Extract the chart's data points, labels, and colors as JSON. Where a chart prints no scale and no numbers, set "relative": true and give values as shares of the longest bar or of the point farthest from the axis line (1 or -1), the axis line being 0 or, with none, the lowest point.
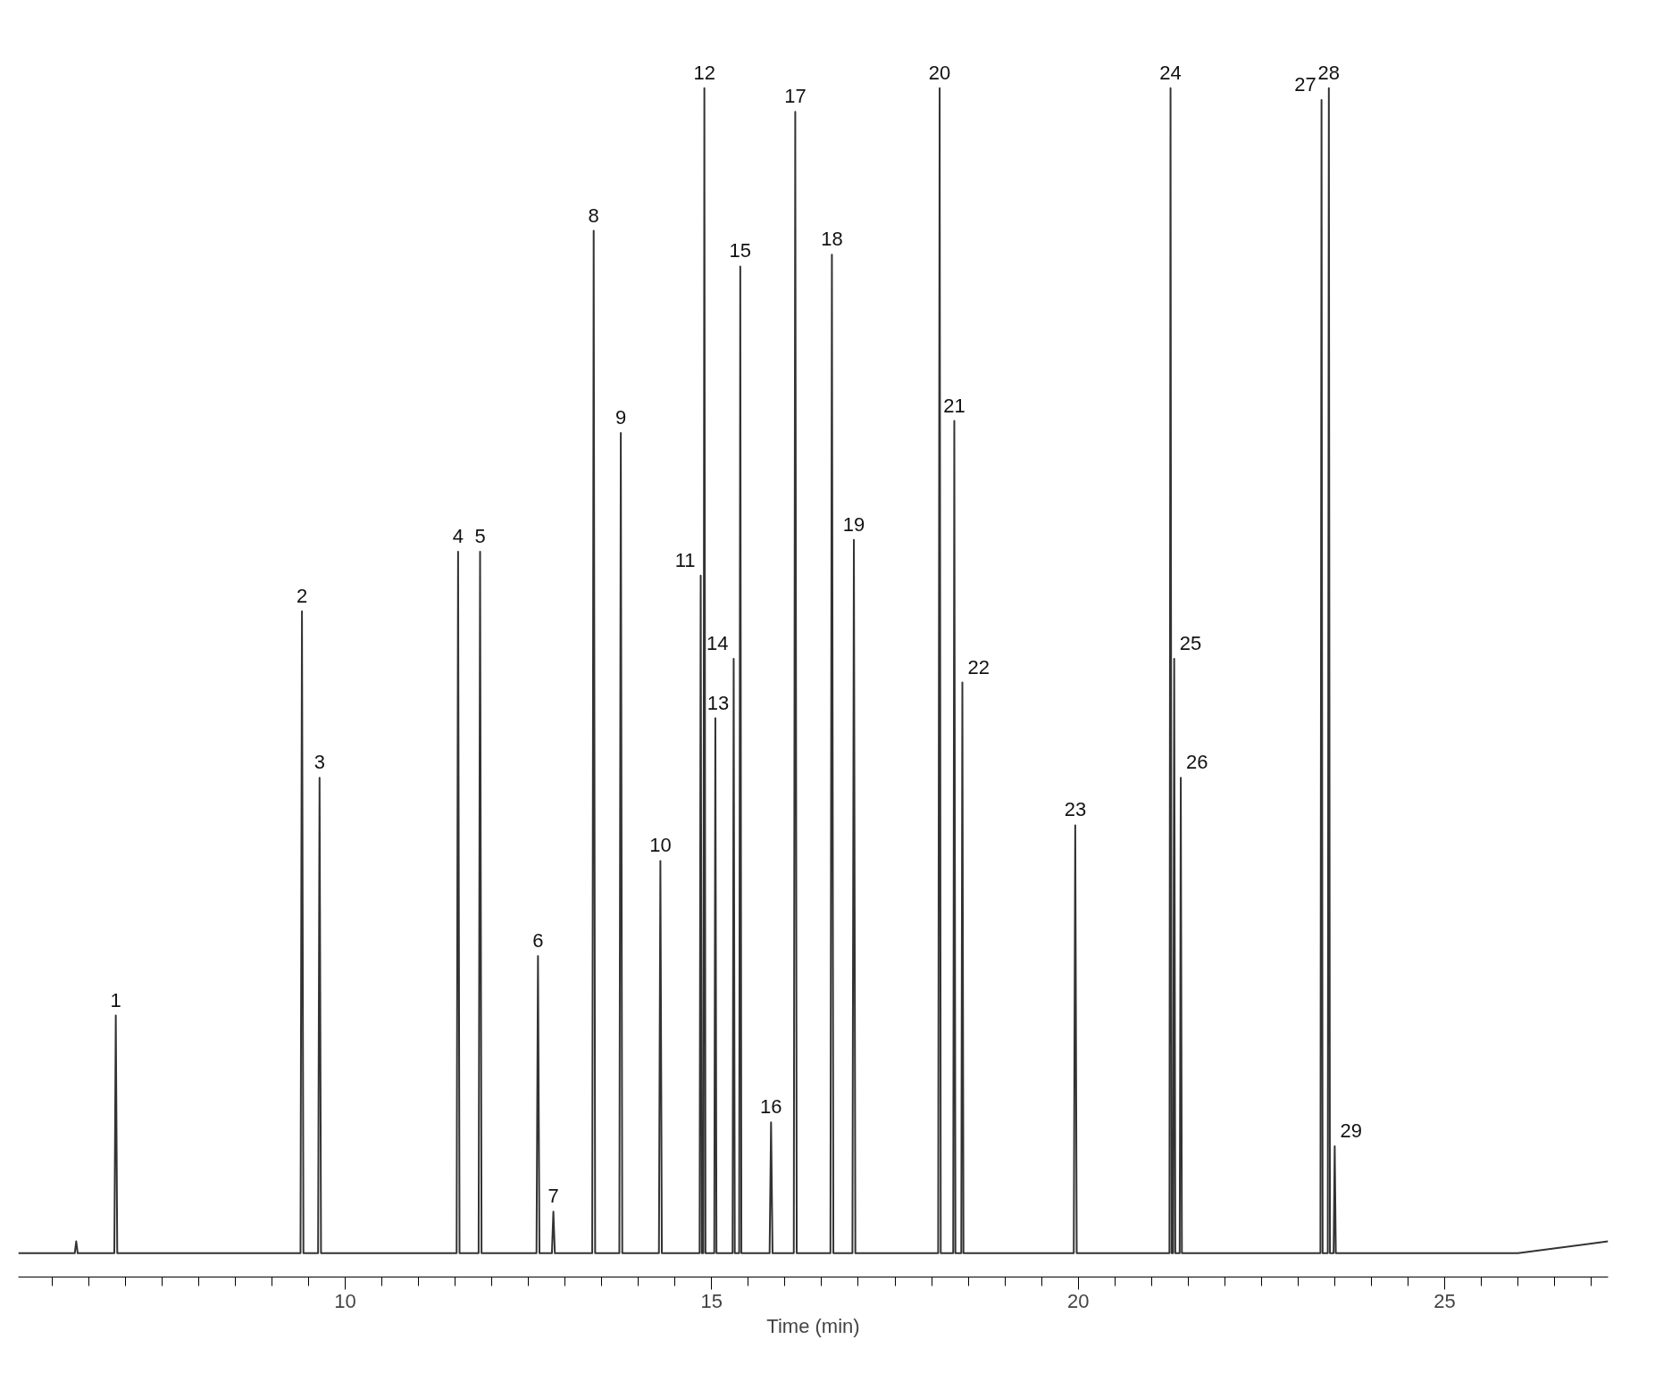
{
  "chart_data": {
    "type": "line",
    "relative": true,
    "xlabel": "Time (min)",
    "xlim": [
      5.54,
      27.23
    ],
    "xticks": [
      {
        "value": 6,
        "label": null
      },
      {
        "value": 6.5,
        "label": null
      },
      {
        "value": 7,
        "label": null
      },
      {
        "value": 7.5,
        "label": null
      },
      {
        "value": 8,
        "label": null
      },
      {
        "value": 8.5,
        "label": null
      },
      {
        "value": 9,
        "label": null
      },
      {
        "value": 9.5,
        "label": null
      },
      10,
      {
        "value": 10.5,
        "label": null
      },
      {
        "value": 11,
        "label": null
      },
      {
        "value": 11.5,
        "label": null
      },
      {
        "value": 12,
        "label": null
      },
      {
        "value": 12.5,
        "label": null
      },
      {
        "value": 13,
        "label": null
      },
      {
        "value": 13.5,
        "label": null
      },
      {
        "value": 14,
        "label": null
      },
      {
        "value": 14.5,
        "label": null
      },
      15,
      {
        "value": 15.5,
        "label": null
      },
      {
        "value": 16,
        "label": null
      },
      {
        "value": 16.5,
        "label": null
      },
      {
        "value": 17,
        "label": null
      },
      {
        "value": 17.5,
        "label": null
      },
      {
        "value": 18,
        "label": null
      },
      {
        "value": 18.5,
        "label": null
      },
      {
        "value": 19,
        "label": null
      },
      {
        "value": 19.5,
        "label": null
      },
      20,
      {
        "value": 20.5,
        "label": null
      },
      {
        "value": 21,
        "label": null
      },
      {
        "value": 21.5,
        "label": null
      },
      {
        "value": 22,
        "label": null
      },
      {
        "value": 22.5,
        "label": null
      },
      {
        "value": 23,
        "label": null
      },
      {
        "value": 23.5,
        "label": null
      },
      {
        "value": 24,
        "label": null
      },
      {
        "value": 24.5,
        "label": null
      },
      25,
      {
        "value": 25.5,
        "label": null
      },
      {
        "value": 26,
        "label": null
      },
      {
        "value": 26.5,
        "label": null
      },
      {
        "value": 27,
        "label": null
      }
    ],
    "grid": false,
    "marker": "none",
    "line_style": "solid",
    "series": [
      {
        "color": "#333333",
        "x": [
          5.54,
          6.31,
          6.33,
          6.35,
          6.85,
          6.87,
          6.89,
          9.39,
          9.41,
          9.43,
          9.63,
          9.65,
          9.67,
          11.52,
          11.54,
          11.56,
          11.82,
          11.84,
          11.86,
          12.61,
          12.63,
          12.65,
          12.82,
          12.84,
          12.86,
          13.37,
          13.39,
          13.41,
          13.74,
          13.76,
          13.78,
          14.28,
          14.3,
          14.32,
          14.835,
          14.85,
          14.865,
          14.885,
          14.9,
          14.915,
          15.035,
          15.05,
          15.065,
          15.285,
          15.3,
          15.315,
          15.375,
          15.39,
          15.405,
          15.79,
          15.81,
          15.83,
          16.12,
          16.14,
          16.16,
          16.62,
          16.64,
          16.66,
          16.92,
          16.94,
          16.96,
          18.09,
          18.11,
          18.125,
          18.295,
          18.31,
          18.325,
          18.405,
          18.42,
          18.435,
          19.94,
          19.96,
          19.98,
          21.245,
          21.26,
          21.275,
          21.295,
          21.31,
          21.325,
          21.385,
          21.4,
          21.415,
          23.305,
          23.32,
          23.335,
          23.405,
          23.42,
          23.435,
          23.485,
          23.5,
          23.515,
          26.0,
          27.23
        ],
        "values": [
          0.02,
          0.02,
          0.03,
          0.02,
          0.02,
          0.22,
          0.02,
          0.02,
          0.56,
          0.02,
          0.02,
          0.42,
          0.02,
          0.02,
          0.61,
          0.02,
          0.02,
          0.61,
          0.02,
          0.02,
          0.27,
          0.02,
          0.02,
          0.055,
          0.02,
          0.02,
          0.88,
          0.02,
          0.02,
          0.71,
          0.02,
          0.02,
          0.35,
          0.02,
          0.02,
          0.59,
          0.02,
          0.02,
          1.0,
          0.02,
          0.02,
          0.47,
          0.02,
          0.02,
          0.52,
          0.02,
          0.02,
          0.85,
          0.02,
          0.02,
          0.13,
          0.02,
          0.02,
          0.98,
          0.02,
          0.02,
          0.86,
          0.02,
          0.02,
          0.62,
          0.02,
          0.02,
          1.0,
          0.02,
          0.02,
          0.72,
          0.02,
          0.02,
          0.5,
          0.02,
          0.02,
          0.38,
          0.02,
          0.02,
          1.0,
          0.02,
          0.02,
          0.52,
          0.02,
          0.02,
          0.42,
          0.02,
          0.02,
          0.99,
          0.02,
          0.02,
          1.0,
          0.02,
          0.02,
          0.11,
          0.02,
          0.02,
          0.03
        ]
      }
    ],
    "annotations": [
      {
        "text": "1",
        "x": 6.87,
        "y": 0.22
      },
      {
        "text": "2",
        "x": 9.41,
        "y": 0.56
      },
      {
        "text": "3",
        "x": 9.65,
        "y": 0.42
      },
      {
        "text": "4",
        "x": 11.54,
        "y": 0.61
      },
      {
        "text": "5",
        "x": 11.84,
        "y": 0.61
      },
      {
        "text": "6",
        "x": 12.63,
        "y": 0.27
      },
      {
        "text": "7",
        "x": 12.84,
        "y": 0.055
      },
      {
        "text": "8",
        "x": 13.39,
        "y": 0.88
      },
      {
        "text": "9",
        "x": 13.76,
        "y": 0.71
      },
      {
        "text": "10",
        "x": 14.3,
        "y": 0.35
      },
      {
        "text": "11",
        "x": 14.85,
        "y": 0.59
      },
      {
        "text": "12",
        "x": 14.9,
        "y": 1.0
      },
      {
        "text": "13",
        "x": 15.05,
        "y": 0.47
      },
      {
        "text": "14",
        "x": 15.3,
        "y": 0.52
      },
      {
        "text": "15",
        "x": 15.39,
        "y": 0.85
      },
      {
        "text": "16",
        "x": 15.81,
        "y": 0.13
      },
      {
        "text": "17",
        "x": 16.14,
        "y": 0.98
      },
      {
        "text": "18",
        "x": 16.64,
        "y": 0.86
      },
      {
        "text": "19",
        "x": 16.94,
        "y": 0.62
      },
      {
        "text": "20",
        "x": 18.11,
        "y": 1.0
      },
      {
        "text": "21",
        "x": 18.31,
        "y": 0.72
      },
      {
        "text": "22",
        "x": 18.42,
        "y": 0.5
      },
      {
        "text": "23",
        "x": 19.96,
        "y": 0.38
      },
      {
        "text": "24",
        "x": 21.26,
        "y": 1.0
      },
      {
        "text": "25",
        "x": 21.31,
        "y": 0.52
      },
      {
        "text": "26",
        "x": 21.4,
        "y": 0.42
      },
      {
        "text": "27",
        "x": 23.32,
        "y": 0.99
      },
      {
        "text": "28",
        "x": 23.42,
        "y": 1.0
      },
      {
        "text": "29",
        "x": 23.5,
        "y": 0.11
      }
    ]
  }
}
